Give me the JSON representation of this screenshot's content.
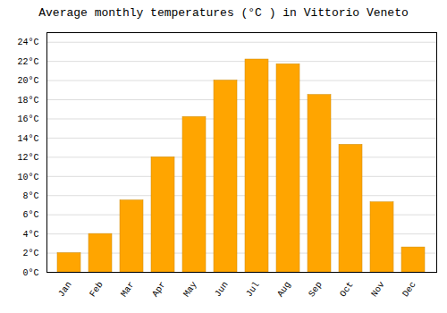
{
  "chart_data": {
    "type": "bar",
    "title": "Average monthly temperatures (°C ) in Vittorio Veneto",
    "categories": [
      "Jan",
      "Feb",
      "Mar",
      "Apr",
      "May",
      "Jun",
      "Jul",
      "Aug",
      "Sep",
      "Oct",
      "Nov",
      "Dec"
    ],
    "values": [
      2.0,
      4.0,
      7.5,
      12.0,
      16.2,
      20.0,
      22.2,
      21.7,
      18.5,
      13.3,
      7.3,
      2.6
    ],
    "color": "#FFA500",
    "ylim": [
      0,
      25
    ],
    "yticks": [
      {
        "value": 0,
        "label": "0°C"
      },
      {
        "value": 2,
        "label": "2°C"
      },
      {
        "value": 4,
        "label": "4°C"
      },
      {
        "value": 6,
        "label": "6°C"
      },
      {
        "value": 8,
        "label": "8°C"
      },
      {
        "value": 10,
        "label": "10°C"
      },
      {
        "value": 12,
        "label": "12°C"
      },
      {
        "value": 14,
        "label": "14°C"
      },
      {
        "value": 16,
        "label": "16°C"
      },
      {
        "value": 18,
        "label": "18°C"
      },
      {
        "value": 20,
        "label": "20°C"
      },
      {
        "value": 22,
        "label": "22°C"
      },
      {
        "value": 24,
        "label": "24°C"
      }
    ],
    "grid": true
  }
}
